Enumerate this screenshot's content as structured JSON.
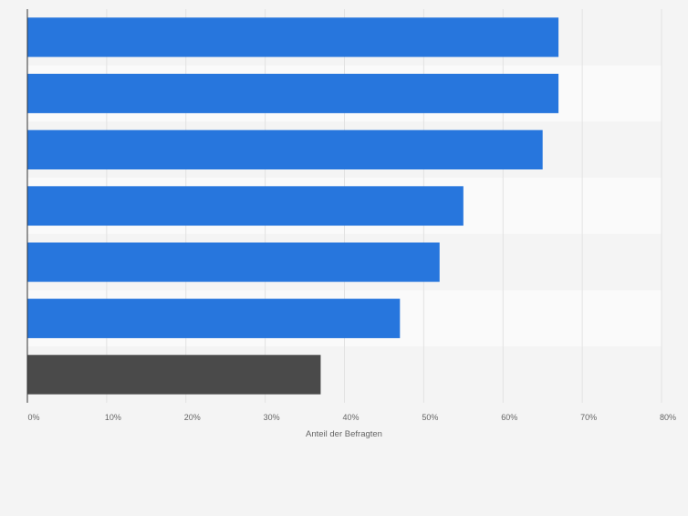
{
  "chart_data": {
    "type": "bar",
    "orientation": "horizontal",
    "categories": [
      "",
      "",
      "",
      "",
      "",
      "",
      ""
    ],
    "values": [
      67,
      67,
      65,
      55,
      52,
      47,
      37
    ],
    "bar_colors": [
      "#2776dd",
      "#2776dd",
      "#2776dd",
      "#2776dd",
      "#2776dd",
      "#2776dd",
      "#4a4a4a"
    ],
    "xlim": [
      0,
      80
    ],
    "x_ticks": [
      0,
      10,
      20,
      30,
      40,
      50,
      60,
      70,
      80
    ],
    "x_tick_labels": [
      "0%",
      "10%",
      "20%",
      "30%",
      "40%",
      "50%",
      "60%",
      "70%",
      "80%"
    ],
    "xlabel": "Anteil der Befragten",
    "ylabel": "",
    "title": "",
    "grid": true,
    "legend": "none",
    "band_colors": [
      "#f4f4f4",
      "#fafafa"
    ]
  }
}
